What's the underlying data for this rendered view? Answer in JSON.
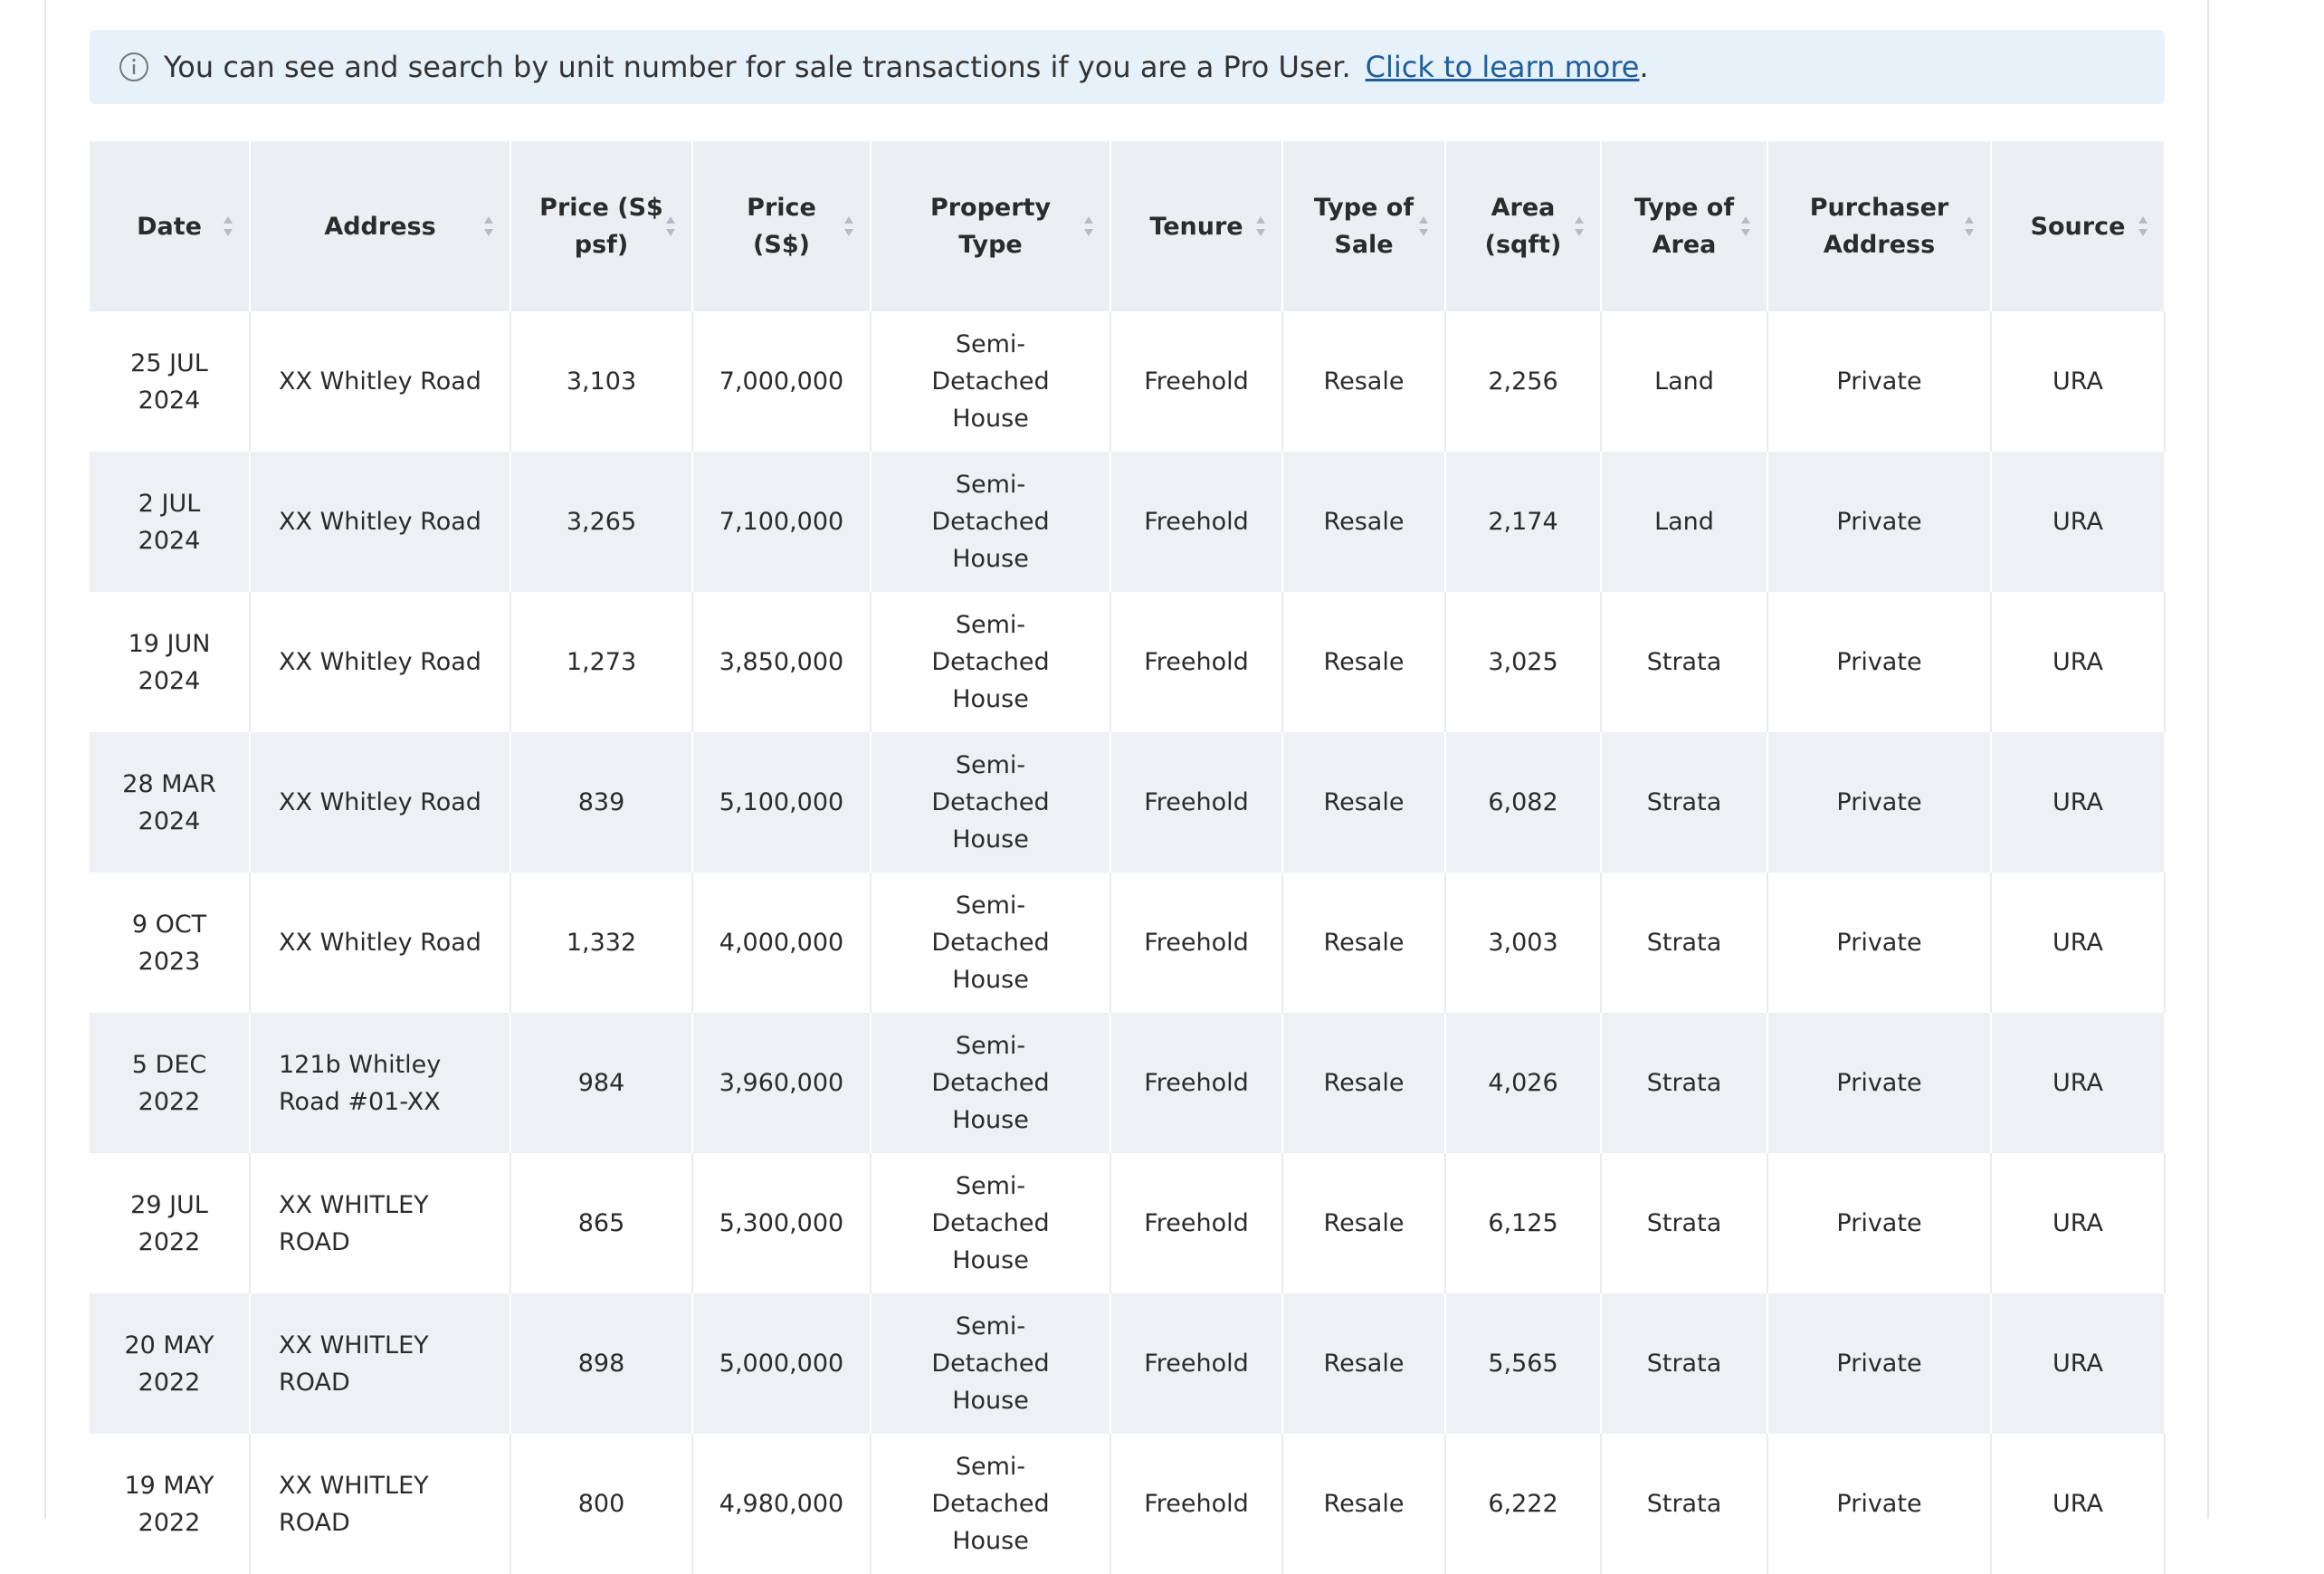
{
  "banner": {
    "text": "You can see and search by unit number for sale transactions if you are a Pro User.",
    "link": "Click to learn more",
    "suffix": "."
  },
  "table": {
    "headers": [
      "Date",
      "Address",
      "Price (S$ psf)",
      "Price (S$)",
      "Property Type",
      "Tenure",
      "Type of Sale",
      "Area (sqft)",
      "Type of Area",
      "Purchaser Address",
      "Source"
    ],
    "rows": [
      [
        "25 JUL 2024",
        "XX Whitley Road",
        "3,103",
        "7,000,000",
        "Semi-Detached House",
        "Freehold",
        "Resale",
        "2,256",
        "Land",
        "Private",
        "URA"
      ],
      [
        "2 JUL 2024",
        "XX Whitley Road",
        "3,265",
        "7,100,000",
        "Semi-Detached House",
        "Freehold",
        "Resale",
        "2,174",
        "Land",
        "Private",
        "URA"
      ],
      [
        "19 JUN 2024",
        "XX Whitley Road",
        "1,273",
        "3,850,000",
        "Semi-Detached House",
        "Freehold",
        "Resale",
        "3,025",
        "Strata",
        "Private",
        "URA"
      ],
      [
        "28 MAR 2024",
        "XX Whitley Road",
        "839",
        "5,100,000",
        "Semi-Detached House",
        "Freehold",
        "Resale",
        "6,082",
        "Strata",
        "Private",
        "URA"
      ],
      [
        "9 OCT 2023",
        "XX Whitley Road",
        "1,332",
        "4,000,000",
        "Semi-Detached House",
        "Freehold",
        "Resale",
        "3,003",
        "Strata",
        "Private",
        "URA"
      ],
      [
        "5 DEC 2022",
        "121b Whitley Road #01-XX",
        "984",
        "3,960,000",
        "Semi-Detached House",
        "Freehold",
        "Resale",
        "4,026",
        "Strata",
        "Private",
        "URA"
      ],
      [
        "29 JUL 2022",
        "XX WHITLEY ROAD",
        "865",
        "5,300,000",
        "Semi-Detached House",
        "Freehold",
        "Resale",
        "6,125",
        "Strata",
        "Private",
        "URA"
      ],
      [
        "20 MAY 2022",
        "XX WHITLEY ROAD",
        "898",
        "5,000,000",
        "Semi-Detached House",
        "Freehold",
        "Resale",
        "5,565",
        "Strata",
        "Private",
        "URA"
      ],
      [
        "19 MAY 2022",
        "XX WHITLEY ROAD",
        "800",
        "4,980,000",
        "Semi-Detached House",
        "Freehold",
        "Resale",
        "6,222",
        "Strata",
        "Private",
        "URA"
      ]
    ]
  }
}
